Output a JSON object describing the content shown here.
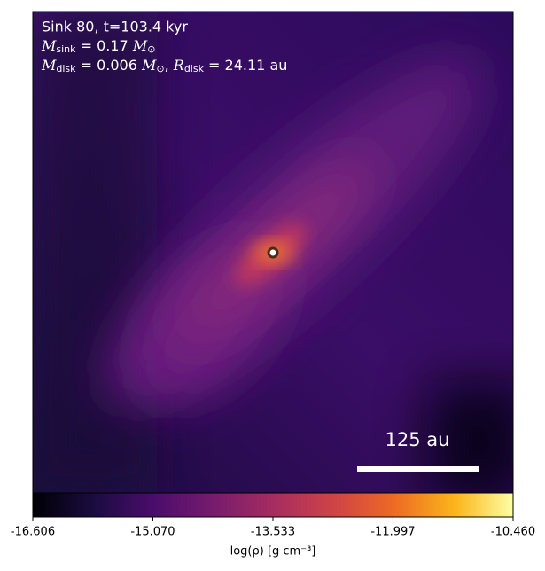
{
  "chart_data": {
    "type": "image",
    "annotations": {
      "line1": "Sink 80, t=103.4 kyr",
      "line2": {
        "symbol": "M",
        "sub": "sink",
        "rest": " = 0.17 ",
        "unit": "M",
        "unit_sub": "⊙"
      },
      "line3": {
        "symbol": "M",
        "sub": "disk",
        "rest": " = 0.006 ",
        "unit": "M",
        "unit_sub": "⊙",
        "sep": ", ",
        "symbol2": "R",
        "sub2": "disk",
        "rest2": " = 24.11 au"
      }
    },
    "scale_bar_label": "125 au",
    "colorbar": {
      "label": "log(ρ) [g cm⁻³]",
      "lim": [
        -16.606,
        -10.46
      ],
      "ticks": [
        -16.606,
        {
          "value": -15.07,
          "label": "-15.070"
        },
        -13.533,
        -11.997,
        {
          "value": -10.46,
          "label": "-10.460"
        }
      ]
    }
  }
}
